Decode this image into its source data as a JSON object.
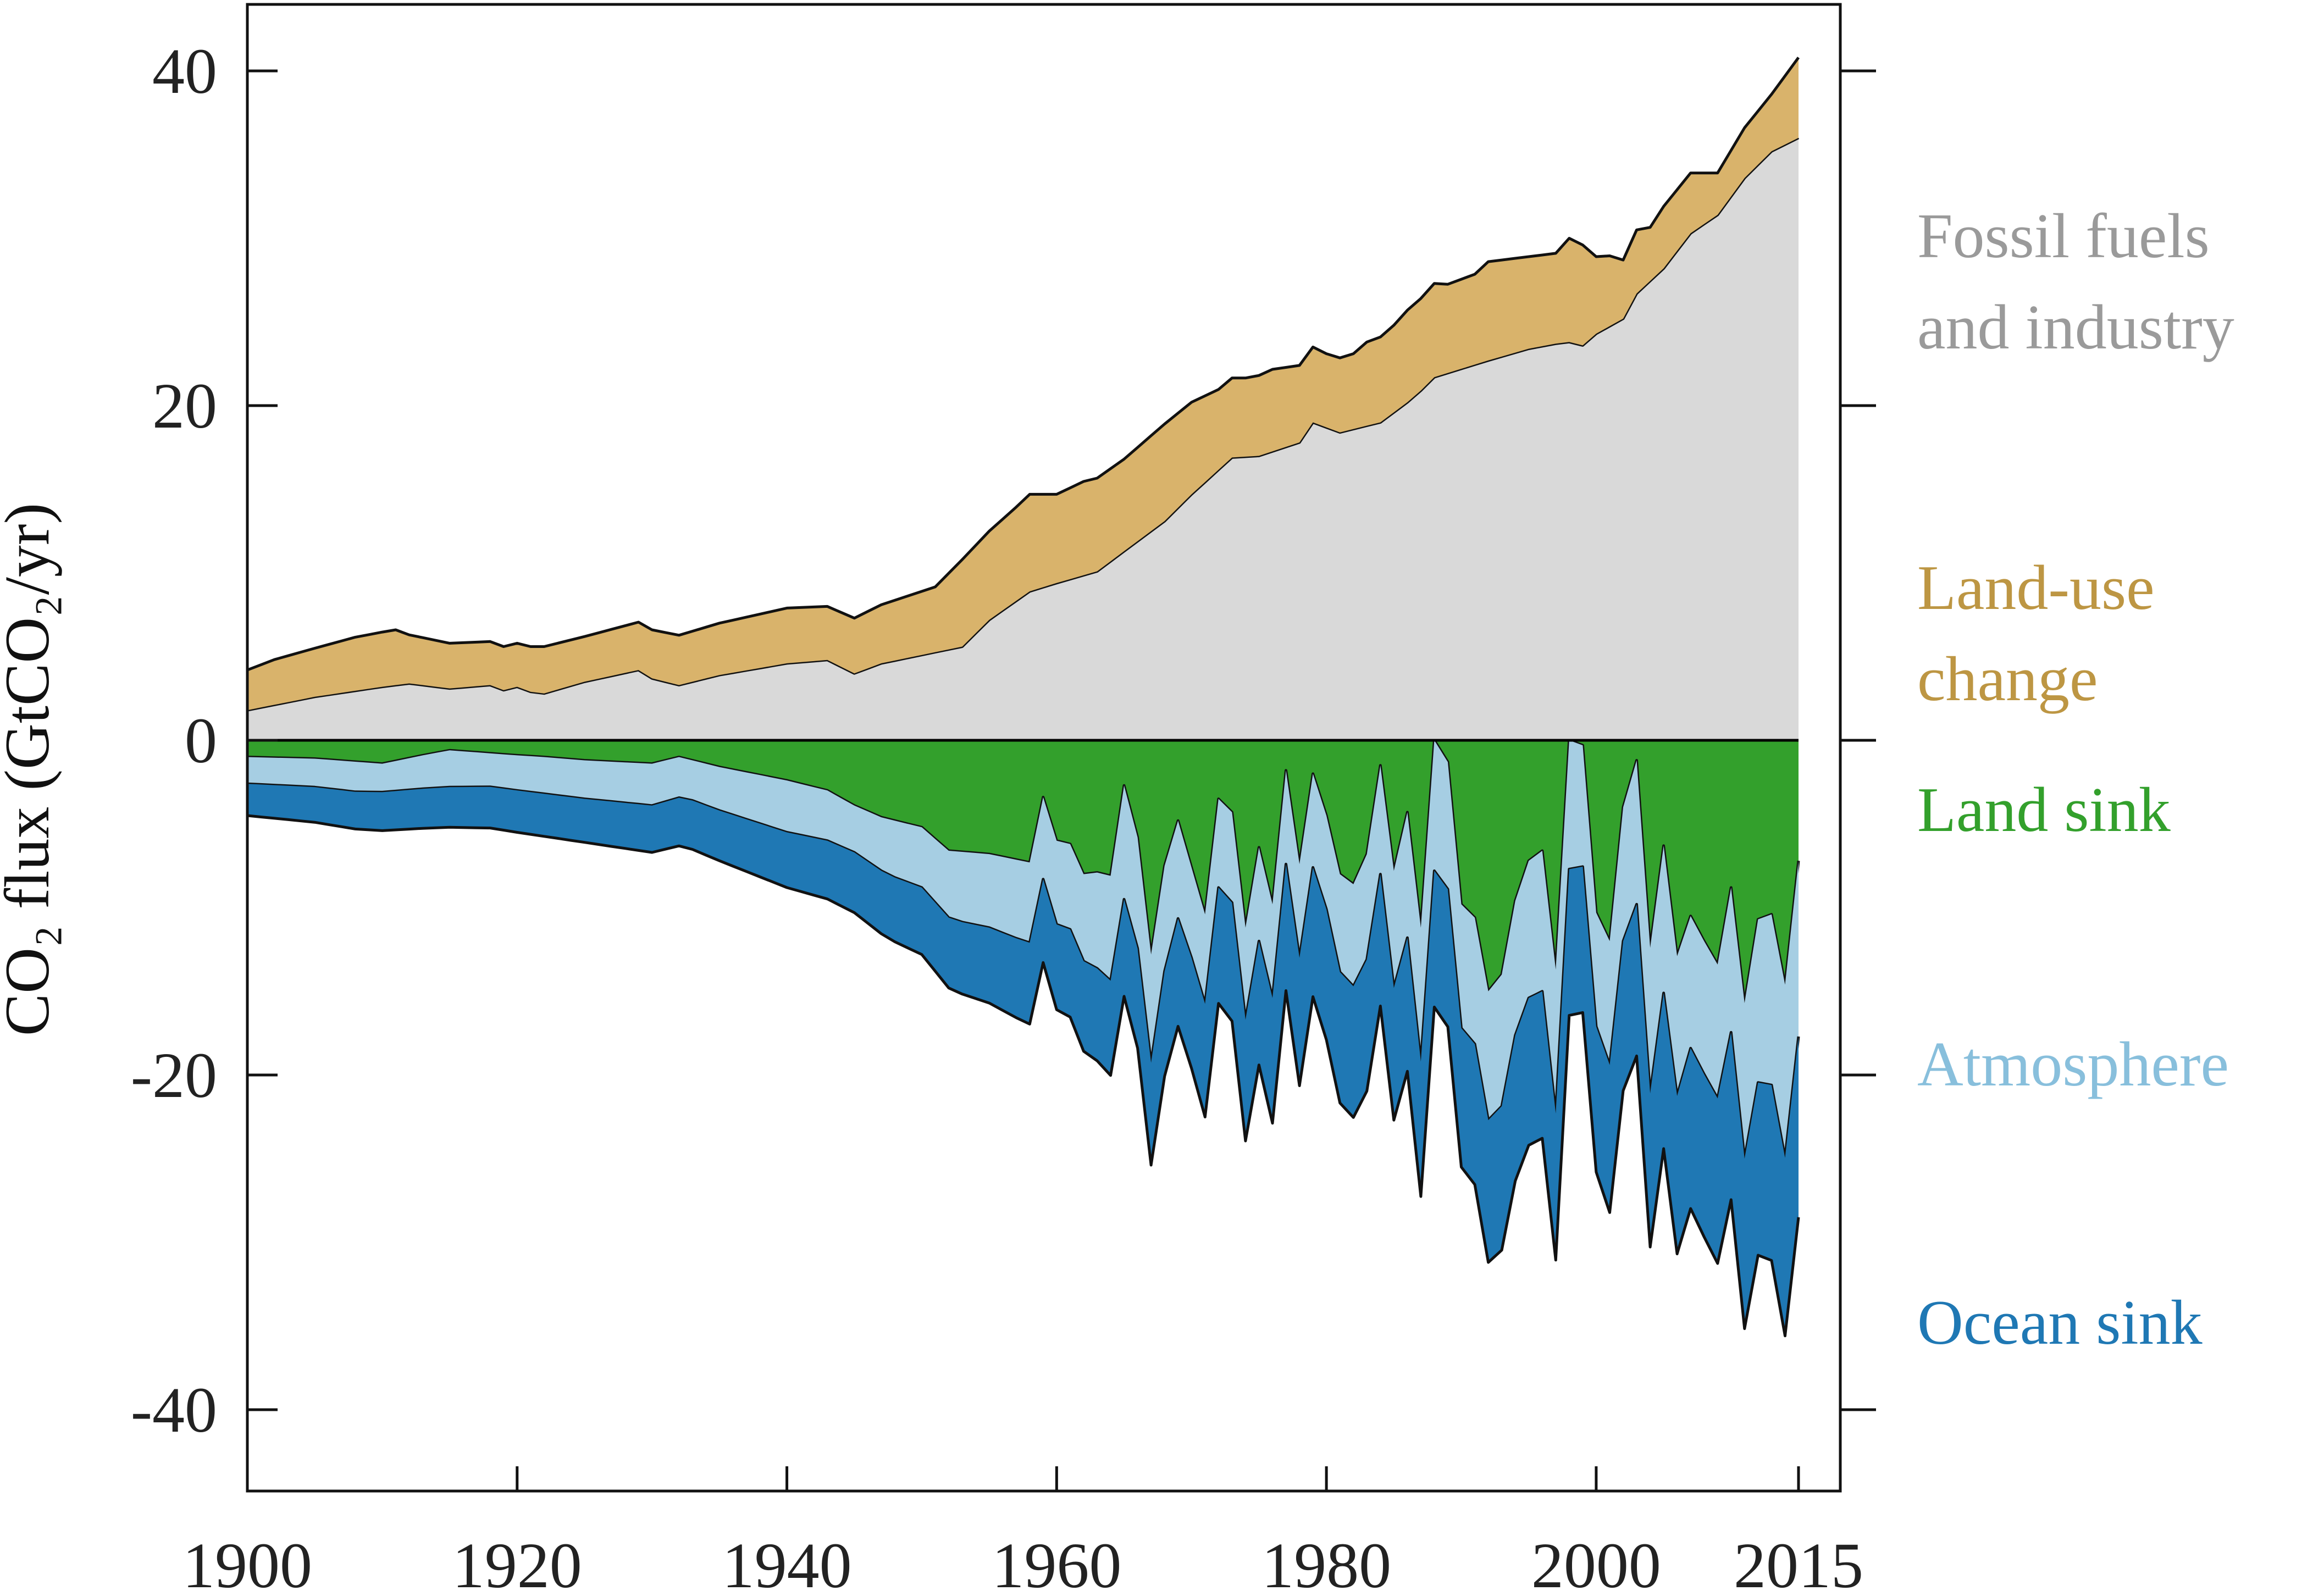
{
  "chart_data": {
    "type": "area",
    "ylabel": "CO₂ flux (GtCO₂/yr)",
    "xlim": [
      1900,
      2015
    ],
    "ylim": [
      -45,
      44
    ],
    "x_ticks": [
      1900,
      1920,
      1940,
      1960,
      1980,
      2000,
      2015
    ],
    "y_ticks": [
      40,
      20,
      0,
      -20,
      -40
    ],
    "grid": false,
    "legend": "direct labels on right",
    "series": [
      {
        "name": "Fossil fuels and industry",
        "side": "positive",
        "color": "#d9d9d9",
        "label_color": "#9a9a9a",
        "label_lines": [
          "Fossil fuels",
          "and industry"
        ],
        "points": [
          [
            1900,
            1.8
          ],
          [
            1905,
            2.6
          ],
          [
            1910,
            3.2
          ],
          [
            1912,
            3.4
          ],
          [
            1914,
            3.2
          ],
          [
            1915,
            3.1
          ],
          [
            1918,
            3.3
          ],
          [
            1919,
            3.0
          ],
          [
            1920,
            3.2
          ],
          [
            1921,
            2.9
          ],
          [
            1922,
            2.8
          ],
          [
            1925,
            3.5
          ],
          [
            1929,
            4.2
          ],
          [
            1930,
            3.7
          ],
          [
            1932,
            3.3
          ],
          [
            1935,
            3.9
          ],
          [
            1940,
            4.6
          ],
          [
            1943,
            4.8
          ],
          [
            1945,
            4.0
          ],
          [
            1947,
            4.6
          ],
          [
            1950,
            5.1
          ],
          [
            1953,
            5.6
          ],
          [
            1955,
            7.2
          ],
          [
            1958,
            8.9
          ],
          [
            1960,
            9.4
          ],
          [
            1963,
            10.1
          ],
          [
            1965,
            11.3
          ],
          [
            1968,
            13.1
          ],
          [
            1970,
            14.7
          ],
          [
            1973,
            16.9
          ],
          [
            1975,
            17.0
          ],
          [
            1978,
            17.8
          ],
          [
            1979,
            19.0
          ],
          [
            1981,
            18.4
          ],
          [
            1982,
            18.6
          ],
          [
            1984,
            19.0
          ],
          [
            1986,
            20.2
          ],
          [
            1987,
            20.9
          ],
          [
            1988,
            21.7
          ],
          [
            1990,
            22.2
          ],
          [
            1992,
            22.7
          ],
          [
            1995,
            23.4
          ],
          [
            1997,
            23.7
          ],
          [
            1998,
            23.8
          ],
          [
            1999,
            23.6
          ],
          [
            2000,
            24.3
          ],
          [
            2002,
            25.2
          ],
          [
            2003,
            26.7
          ],
          [
            2005,
            28.2
          ],
          [
            2007,
            30.3
          ],
          [
            2009,
            31.4
          ],
          [
            2011,
            33.6
          ],
          [
            2013,
            35.2
          ],
          [
            2015,
            36.0
          ]
        ]
      },
      {
        "name": "Land-use change",
        "side": "positive",
        "color": "#d9b36b",
        "label_color": "#bd9643",
        "label_lines": [
          "Land-use",
          "change"
        ],
        "points": [
          [
            1900,
            2.4
          ],
          [
            1902,
            2.7
          ],
          [
            1905,
            2.9
          ],
          [
            1908,
            3.2
          ],
          [
            1911,
            3.3
          ],
          [
            1912,
            2.9
          ],
          [
            1915,
            2.7
          ],
          [
            1918,
            2.6
          ],
          [
            1920,
            2.6
          ],
          [
            1922,
            2.8
          ],
          [
            1925,
            2.7
          ],
          [
            1930,
            2.9
          ],
          [
            1935,
            3.1
          ],
          [
            1940,
            3.3
          ],
          [
            1943,
            3.2
          ],
          [
            1945,
            3.3
          ],
          [
            1948,
            3.6
          ],
          [
            1950,
            3.8
          ],
          [
            1951,
            3.9
          ],
          [
            1953,
            5.2
          ],
          [
            1955,
            5.3
          ],
          [
            1957,
            5.6
          ],
          [
            1958,
            5.8
          ],
          [
            1960,
            5.3
          ],
          [
            1962,
            5.6
          ],
          [
            1965,
            5.5
          ],
          [
            1968,
            5.8
          ],
          [
            1970,
            5.5
          ],
          [
            1972,
            4.8
          ],
          [
            1974,
            4.7
          ],
          [
            1976,
            4.9
          ],
          [
            1978,
            4.6
          ],
          [
            1980,
            4.4
          ],
          [
            1982,
            4.5
          ],
          [
            1983,
            5.0
          ],
          [
            1985,
            5.2
          ],
          [
            1986,
            5.5
          ],
          [
            1987,
            5.5
          ],
          [
            1988,
            5.6
          ],
          [
            1989,
            5.3
          ],
          [
            1991,
            5.4
          ],
          [
            1992,
            5.9
          ],
          [
            1995,
            5.5
          ],
          [
            1997,
            5.4
          ],
          [
            1998,
            6.2
          ],
          [
            1999,
            6.0
          ],
          [
            2000,
            4.6
          ],
          [
            2001,
            4.2
          ],
          [
            2002,
            3.5
          ],
          [
            2003,
            3.8
          ],
          [
            2004,
            3.2
          ],
          [
            2005,
            3.7
          ],
          [
            2007,
            3.6
          ],
          [
            2009,
            2.5
          ],
          [
            2011,
            3.0
          ],
          [
            2013,
            3.4
          ],
          [
            2015,
            4.8
          ]
        ]
      },
      {
        "name": "Land sink",
        "side": "negative",
        "color": "#33a02c",
        "label_color": "#33a02c",
        "label_lines": [
          "Land sink"
        ],
        "points": [
          [
            1900,
            -1.0
          ],
          [
            1905,
            -1.1
          ],
          [
            1910,
            -1.4
          ],
          [
            1913,
            -0.9
          ],
          [
            1915,
            -0.6
          ],
          [
            1920,
            -0.9
          ],
          [
            1922,
            -1.0
          ],
          [
            1925,
            -1.2
          ],
          [
            1930,
            -1.4
          ],
          [
            1932,
            -1.0
          ],
          [
            1935,
            -1.6
          ],
          [
            1940,
            -2.4
          ],
          [
            1943,
            -3.0
          ],
          [
            1945,
            -3.9
          ],
          [
            1947,
            -4.6
          ],
          [
            1950,
            -5.2
          ],
          [
            1952,
            -6.6
          ],
          [
            1955,
            -6.8
          ],
          [
            1958,
            -7.3
          ],
          [
            1959,
            -3.4
          ],
          [
            1960,
            -6.0
          ],
          [
            1961,
            -6.2
          ],
          [
            1962,
            -8.0
          ],
          [
            1963,
            -7.9
          ],
          [
            1964,
            -8.1
          ],
          [
            1965,
            -2.7
          ],
          [
            1966,
            -5.8
          ],
          [
            1967,
            -12.8
          ],
          [
            1968,
            -7.5
          ],
          [
            1969,
            -4.8
          ],
          [
            1971,
            -10.4
          ],
          [
            1972,
            -3.5
          ],
          [
            1973,
            -4.3
          ],
          [
            1974,
            -11.2
          ],
          [
            1975,
            -6.4
          ],
          [
            1976,
            -9.8
          ],
          [
            1977,
            -1.8
          ],
          [
            1978,
            -7.4
          ],
          [
            1979,
            -2.0
          ],
          [
            1980,
            -4.5
          ],
          [
            1981,
            -8.0
          ],
          [
            1982,
            -8.6
          ],
          [
            1983,
            -6.8
          ],
          [
            1984,
            -1.5
          ],
          [
            1985,
            -7.8
          ],
          [
            1986,
            -4.3
          ],
          [
            1987,
            -11.2
          ],
          [
            1988,
            0.0
          ],
          [
            1989,
            -1.3
          ],
          [
            1990,
            -9.8
          ],
          [
            1991,
            -10.6
          ],
          [
            1992,
            -15.0
          ],
          [
            1993,
            -14.0
          ],
          [
            1994,
            -9.6
          ],
          [
            1995,
            -7.2
          ],
          [
            1996,
            -6.6
          ],
          [
            1997,
            -13.7
          ],
          [
            1998,
            0.0
          ],
          [
            1999,
            -0.3
          ],
          [
            2000,
            -10.3
          ],
          [
            2001,
            -12.0
          ],
          [
            2002,
            -4.0
          ],
          [
            2003,
            -1.2
          ],
          [
            2004,
            -12.4
          ],
          [
            2005,
            -6.3
          ],
          [
            2006,
            -12.9
          ],
          [
            2007,
            -10.5
          ],
          [
            2008,
            -12.0
          ],
          [
            2009,
            -13.4
          ],
          [
            2010,
            -8.8
          ],
          [
            2011,
            -15.7
          ],
          [
            2012,
            -10.7
          ],
          [
            2013,
            -10.4
          ],
          [
            2014,
            -14.6
          ],
          [
            2015,
            -7.2
          ]
        ]
      },
      {
        "name": "Atmosphere",
        "side": "negative",
        "color": "#a6cee3",
        "label_color": "#88bfdc",
        "label_lines": [
          "Atmosphere"
        ],
        "points": [
          [
            1900,
            -1.6
          ],
          [
            1905,
            -1.7
          ],
          [
            1908,
            -1.8
          ],
          [
            1910,
            -1.7
          ],
          [
            1913,
            -2.0
          ],
          [
            1915,
            -2.2
          ],
          [
            1918,
            -2.0
          ],
          [
            1920,
            -2.1
          ],
          [
            1922,
            -2.2
          ],
          [
            1925,
            -2.3
          ],
          [
            1930,
            -2.5
          ],
          [
            1933,
            -2.4
          ],
          [
            1935,
            -2.6
          ],
          [
            1940,
            -3.1
          ],
          [
            1943,
            -3.0
          ],
          [
            1945,
            -2.8
          ],
          [
            1948,
            -3.4
          ],
          [
            1950,
            -3.6
          ],
          [
            1953,
            -4.2
          ],
          [
            1955,
            -4.4
          ],
          [
            1957,
            -4.7
          ],
          [
            1960,
            -5.0
          ],
          [
            1962,
            -5.2
          ],
          [
            1965,
            -6.8
          ],
          [
            1968,
            -6.3
          ],
          [
            1970,
            -5.4
          ],
          [
            1972,
            -5.3
          ],
          [
            1975,
            -5.6
          ],
          [
            1978,
            -5.6
          ],
          [
            1980,
            -5.6
          ],
          [
            1982,
            -6.1
          ],
          [
            1984,
            -6.5
          ],
          [
            1987,
            -8.0
          ],
          [
            1988,
            -7.8
          ],
          [
            1990,
            -7.4
          ],
          [
            1992,
            -7.7
          ],
          [
            1995,
            -8.2
          ],
          [
            1997,
            -8.6
          ],
          [
            1998,
            -7.7
          ],
          [
            2000,
            -6.8
          ],
          [
            2002,
            -8.0
          ],
          [
            2003,
            -8.6
          ],
          [
            2005,
            -8.8
          ],
          [
            2007,
            -7.9
          ],
          [
            2009,
            -8.0
          ],
          [
            2011,
            -9.3
          ],
          [
            2013,
            -10.2
          ],
          [
            2015,
            -10.5
          ]
        ]
      },
      {
        "name": "Ocean sink",
        "side": "negative",
        "color": "#1f78b4",
        "label_color": "#1f78b4",
        "label_lines": [
          "Ocean sink"
        ],
        "points": [
          [
            1900,
            -1.9
          ],
          [
            1905,
            -2.1
          ],
          [
            1910,
            -2.3
          ],
          [
            1915,
            -2.4
          ],
          [
            1920,
            -2.5
          ],
          [
            1925,
            -2.6
          ],
          [
            1930,
            -2.8
          ],
          [
            1935,
            -3.0
          ],
          [
            1940,
            -3.3
          ],
          [
            1945,
            -3.6
          ],
          [
            1950,
            -4.0
          ],
          [
            1955,
            -4.5
          ],
          [
            1960,
            -5.1
          ],
          [
            1965,
            -5.8
          ],
          [
            1970,
            -6.6
          ],
          [
            1975,
            -7.4
          ],
          [
            1980,
            -7.8
          ],
          [
            1985,
            -7.9
          ],
          [
            1990,
            -8.3
          ],
          [
            1995,
            -8.8
          ],
          [
            2000,
            -8.7
          ],
          [
            2005,
            -9.3
          ],
          [
            2010,
            -10.0
          ],
          [
            2015,
            -10.8
          ]
        ]
      }
    ]
  }
}
